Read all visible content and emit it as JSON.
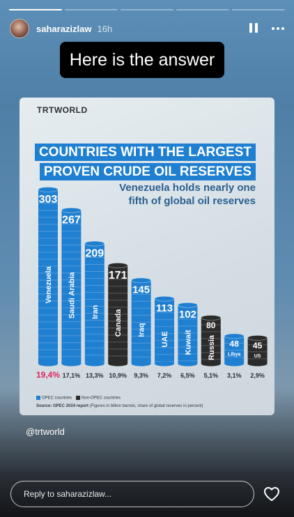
{
  "story": {
    "progress": {
      "segments": 5,
      "active_index": 0
    },
    "username": "saharazizlaw",
    "time": "16h",
    "answer_text": "Here is the answer",
    "handle": "@trtworld",
    "reply_placeholder": "Reply to saharazizlaw...",
    "icons": {
      "pause": "pause-icon",
      "more": "more-icon",
      "heart": "heart-icon"
    }
  },
  "card": {
    "brand": "TRTWORLD",
    "title_line1": "COUNTRIES WITH THE LARGEST",
    "title_line2": "PROVEN CRUDE OIL RESERVES",
    "subtitle_line1": "Venezuela holds nearly one",
    "subtitle_line2": "fifth of global oil reserves",
    "legend_opec": "OPEC countries",
    "legend_nonopec": "Non-OPEC countries",
    "source_label": "Source: OPEC 2024 report",
    "source_note": "(Figures in billion barrels, share of global reserves in percent)",
    "colors": {
      "opec": "#1f7fd1",
      "nonopec": "#2b2b2b",
      "highlight": "#e0245e"
    }
  },
  "chart_data": {
    "type": "bar",
    "title": "COUNTRIES WITH THE LARGEST PROVEN CRUDE OIL RESERVES",
    "subtitle": "Venezuela holds nearly one fifth of global oil reserves",
    "unit": "billion barrels",
    "categories": [
      "Venezuela",
      "Saudi Arabia",
      "Iran",
      "Canada",
      "Iraq",
      "UAE",
      "Kuwait",
      "Russia",
      "Libya",
      "US"
    ],
    "values": [
      303,
      267,
      209,
      171,
      145,
      113,
      102,
      80,
      48,
      45
    ],
    "shares": [
      "19,4%",
      "17,1%",
      "13,3%",
      "10,9%",
      "9,3%",
      "7,2%",
      "6,5%",
      "5,1%",
      "3,1%",
      "2,9%"
    ],
    "group": [
      "opec",
      "opec",
      "opec",
      "nonopec",
      "opec",
      "opec",
      "opec",
      "nonopec",
      "opec",
      "nonopec"
    ],
    "legend": [
      "OPEC countries",
      "Non-OPEC countries"
    ]
  }
}
